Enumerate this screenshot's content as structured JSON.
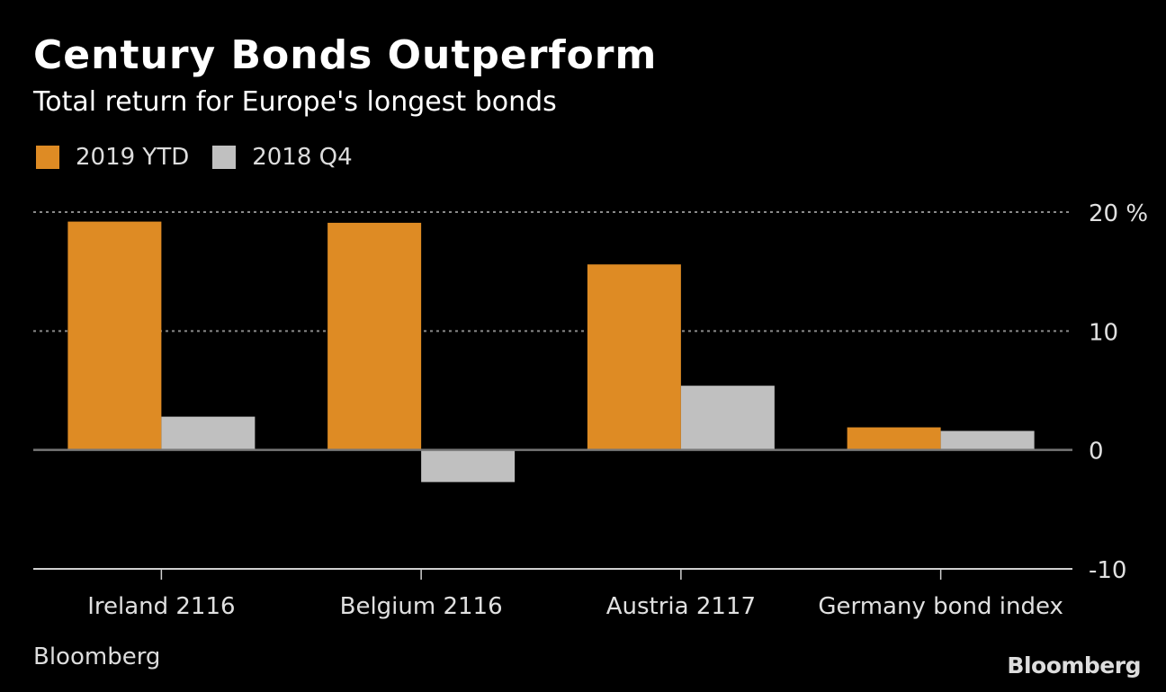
{
  "header": {
    "title": "Century Bonds Outperform",
    "subtitle": "Total return for Europe's longest bonds"
  },
  "legend": [
    {
      "label": "2019 YTD",
      "color": "#DE8B24"
    },
    {
      "label": "2018 Q4",
      "color": "#C0C0C0"
    }
  ],
  "footer": {
    "source": "Bloomberg",
    "logo": "Bloomberg"
  },
  "chart_data": {
    "type": "bar",
    "title": "Century Bonds Outperform",
    "subtitle": "Total return for Europe's longest bonds",
    "xlabel": "",
    "ylabel": "%",
    "categories": [
      "Ireland 2116",
      "Belgium 2116",
      "Austria 2117",
      "Germany bond index"
    ],
    "series": [
      {
        "name": "2019 YTD",
        "color": "#DE8B24",
        "values": [
          19.2,
          19.1,
          15.6,
          1.9
        ]
      },
      {
        "name": "2018 Q4",
        "color": "#C0C0C0",
        "values": [
          2.8,
          -2.7,
          5.4,
          1.6
        ]
      }
    ],
    "ylim": [
      -10,
      20
    ],
    "yticks": [
      20,
      10,
      0,
      -10
    ],
    "ytick_labels": [
      "20 %",
      "10",
      "0",
      "-10"
    ],
    "grid": true,
    "legend_position": "top-left",
    "y_axis_side": "right"
  }
}
